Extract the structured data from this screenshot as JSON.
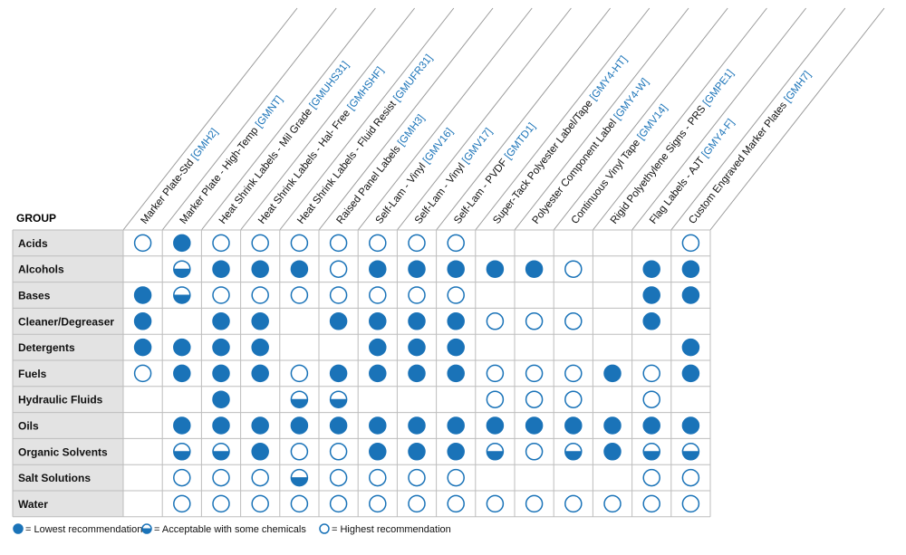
{
  "chart_data": {
    "type": "table",
    "group_header": "GROUP",
    "columns": [
      {
        "label": "Marker Plate-Std",
        "code": "[GMH2]"
      },
      {
        "label": "Marker Plate - High-Temp",
        "code": "[GMNT]"
      },
      {
        "label": "Heat Shrink Labels - Mil Grade",
        "code": "[GMUHS31]"
      },
      {
        "label": "Heat Shrink Labels - Hal- Free",
        "code": "[GMHSHF]"
      },
      {
        "label": "Heat Shrink Labels - Fluid Resist",
        "code": "[GMUFR31]"
      },
      {
        "label": "Raised Panel Labels",
        "code": "[GMH3]"
      },
      {
        "label": "Self-Lam - Vinyl",
        "code": "[GMV16]"
      },
      {
        "label": "Self-Lam - Vinyl",
        "code": "[GMV17]"
      },
      {
        "label": "Self-Lam - PVDF",
        "code": "[GMTD1]"
      },
      {
        "label": "Super-Tack Polyester Label/Tape",
        "code": "[GMY4-HT]"
      },
      {
        "label": "Polyester Component Label",
        "code": "[GMY4-W]"
      },
      {
        "label": "Continuous Vinyl Tape",
        "code": "[GMV14]"
      },
      {
        "label": "Rigid Polyethylene Signs - PRS",
        "code": "[GMPE1]"
      },
      {
        "label": "Flag Labels - AJT",
        "code": "[GMY4-F]"
      },
      {
        "label": "Custom Engraved Marker Plates",
        "code": "[GMH7]"
      }
    ],
    "rows": [
      {
        "label": "Acids",
        "ratings": [
          "high",
          "low",
          "high",
          "high",
          "high",
          "high",
          "high",
          "high",
          "high",
          "",
          "",
          "",
          "",
          "",
          "high"
        ]
      },
      {
        "label": "Alcohols",
        "ratings": [
          "",
          "acceptable",
          "low",
          "low",
          "low",
          "high",
          "low",
          "low",
          "low",
          "low",
          "low",
          "high",
          "",
          "low",
          "low"
        ]
      },
      {
        "label": "Bases",
        "ratings": [
          "low",
          "acceptable",
          "high",
          "high",
          "high",
          "high",
          "high",
          "high",
          "high",
          "",
          "",
          "",
          "",
          "low",
          "low"
        ]
      },
      {
        "label": "Cleaner/Degreaser",
        "ratings": [
          "low",
          "",
          "low",
          "low",
          "",
          "low",
          "low",
          "low",
          "low",
          "high",
          "high",
          "high",
          "",
          "low",
          ""
        ]
      },
      {
        "label": "Detergents",
        "ratings": [
          "low",
          "low",
          "low",
          "low",
          "",
          "",
          "low",
          "low",
          "low",
          "",
          "",
          "",
          "",
          "",
          "low"
        ]
      },
      {
        "label": "Fuels",
        "ratings": [
          "high",
          "low",
          "low",
          "low",
          "high",
          "low",
          "low",
          "low",
          "low",
          "high",
          "high",
          "high",
          "low",
          "high",
          "low"
        ]
      },
      {
        "label": "Hydraulic Fluids",
        "ratings": [
          "",
          "",
          "low",
          "",
          "acceptable",
          "acceptable",
          "",
          "",
          "",
          "high",
          "high",
          "high",
          "",
          "high",
          ""
        ]
      },
      {
        "label": "Oils",
        "ratings": [
          "",
          "low",
          "low",
          "low",
          "low",
          "low",
          "low",
          "low",
          "low",
          "low",
          "low",
          "low",
          "low",
          "low",
          "low"
        ]
      },
      {
        "label": "Organic Solvents",
        "ratings": [
          "",
          "acceptable",
          "acceptable",
          "low",
          "high",
          "high",
          "low",
          "low",
          "low",
          "acceptable",
          "high",
          "acceptable",
          "low",
          "acceptable",
          "acceptable"
        ]
      },
      {
        "label": "Salt Solutions",
        "ratings": [
          "",
          "high",
          "high",
          "high",
          "acceptable",
          "high",
          "high",
          "high",
          "high",
          "",
          "",
          "",
          "",
          "high",
          "high"
        ]
      },
      {
        "label": "Water",
        "ratings": [
          "",
          "high",
          "high",
          "high",
          "high",
          "high",
          "high",
          "high",
          "high",
          "high",
          "high",
          "high",
          "high",
          "high",
          "high"
        ]
      }
    ],
    "legend": [
      {
        "symbol": "low",
        "text": "= Lowest recommendation"
      },
      {
        "symbol": "acceptable",
        "text": "= Acceptable with some chemicals"
      },
      {
        "symbol": "high",
        "text": "= Highest recommendation"
      }
    ]
  },
  "colors": {
    "accent": "#1a73b8",
    "row_header_bg": "#e3e3e3",
    "grid": "#bdbdbd",
    "text": "#111111"
  }
}
